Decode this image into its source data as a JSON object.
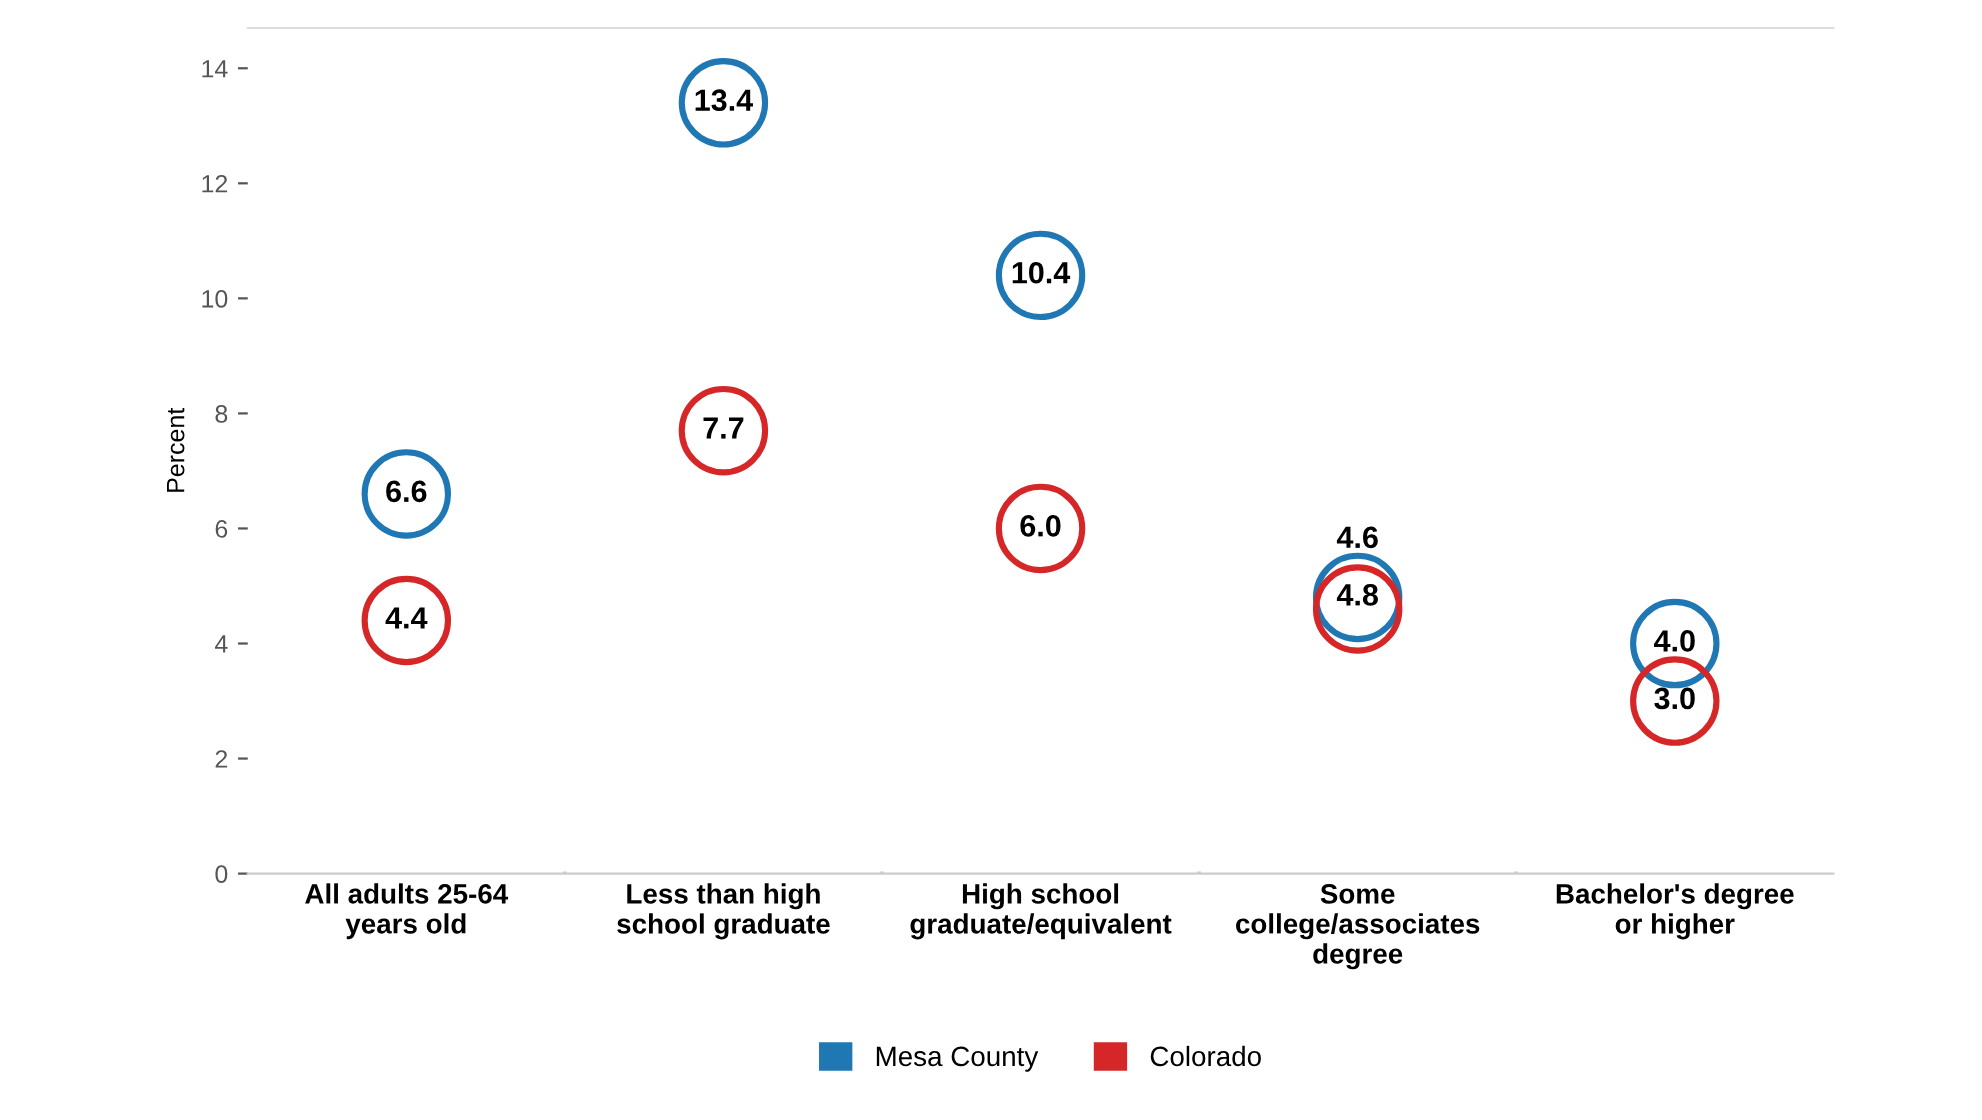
{
  "chart_data": {
    "type": "scatter",
    "ylabel": "Percent",
    "categories": [
      "All adults 25-64\nyears old",
      "Less than high\nschool graduate",
      "High school\ngraduate/equivalent",
      "Some\ncollege/associates\ndegree",
      "Bachelor's degree\nor higher"
    ],
    "series": [
      {
        "name": "Mesa County",
        "color": "#1f77b4",
        "values": [
          6.6,
          13.4,
          10.4,
          4.8,
          4.0
        ],
        "value_labels": [
          "6.6",
          "13.4",
          "10.4",
          "4.8",
          "4.0"
        ]
      },
      {
        "name": "Colorado",
        "color": "#d62728",
        "values": [
          4.4,
          7.7,
          6.0,
          4.6,
          3.0
        ],
        "value_labels": [
          "4.4",
          "7.7",
          "6.0",
          "4.6",
          "3.0"
        ]
      }
    ],
    "ylim": [
      0,
      14.7
    ],
    "yticks": [
      0,
      2,
      4,
      6,
      8,
      10,
      12,
      14
    ],
    "marker": "circle",
    "legend": "bottom",
    "grid": false
  }
}
